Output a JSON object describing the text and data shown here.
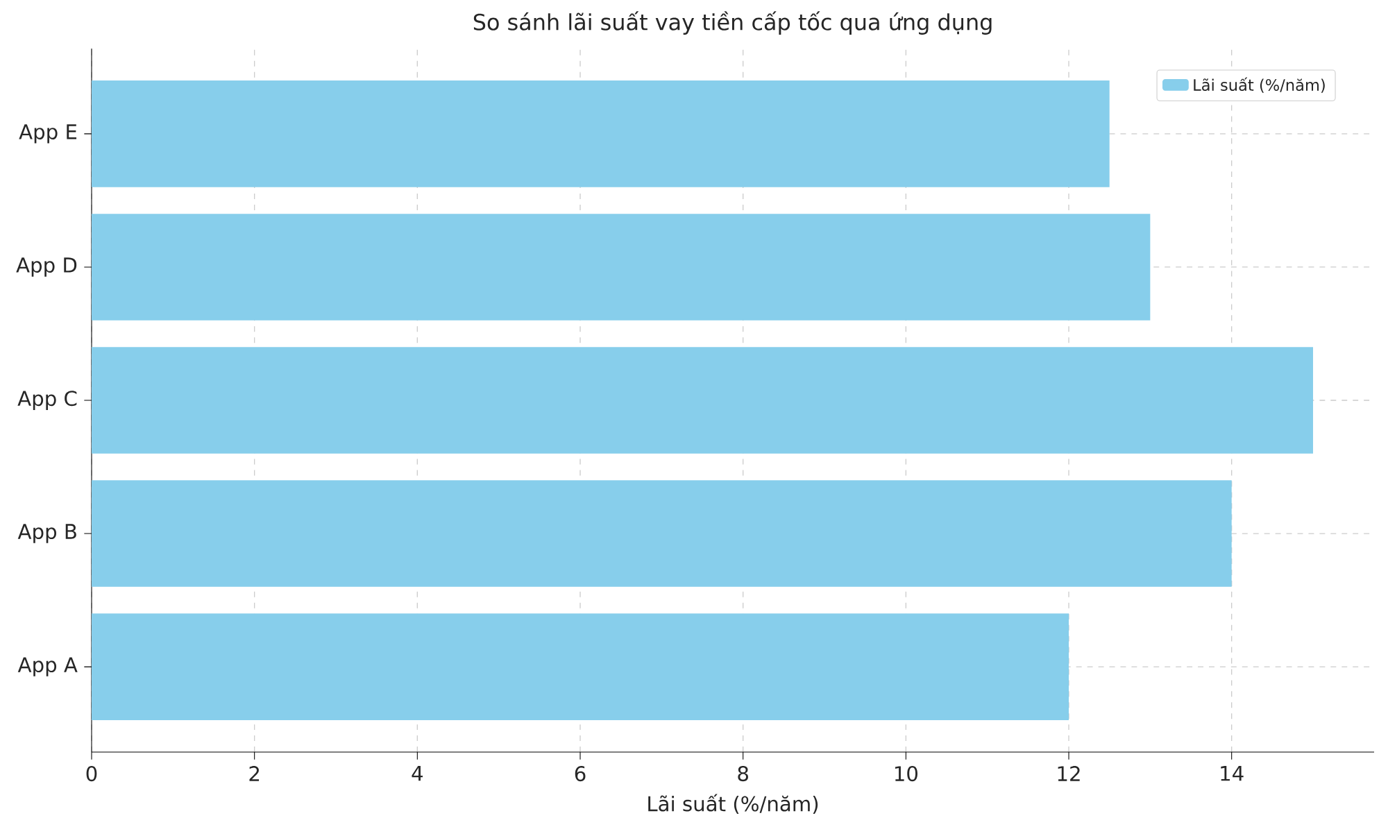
{
  "chart_data": {
    "type": "bar",
    "orientation": "horizontal",
    "title": "So sánh lãi suất vay tiền cấp tốc qua ứng dụng",
    "xlabel": "Lãi suất (%/năm)",
    "categories": [
      "App E",
      "App D",
      "App C",
      "App B",
      "App A"
    ],
    "series": [
      {
        "name": "Lãi suất (%/năm)",
        "color": "#87ceeb",
        "values": [
          12.5,
          13,
          15,
          14,
          12
        ]
      }
    ],
    "xlim": [
      0,
      15.75
    ],
    "xticks": [
      0,
      2,
      4,
      6,
      8,
      10,
      12,
      14
    ],
    "grid": true,
    "legend": "top right"
  }
}
